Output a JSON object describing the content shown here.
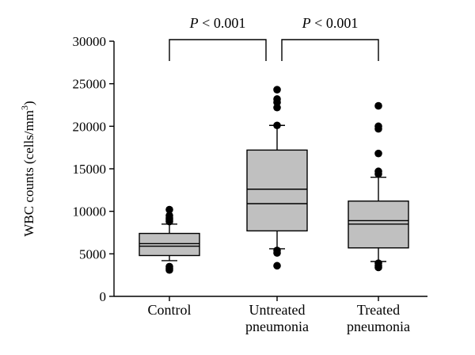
{
  "chart_data": {
    "type": "box",
    "ylabel_main": "WBC counts (cells/mm",
    "ylabel_sup": "3",
    "ylabel_close": ")",
    "ylim": [
      0,
      30000
    ],
    "yticks": [
      0,
      5000,
      10000,
      15000,
      20000,
      25000,
      30000
    ],
    "ytick_labels": [
      "0",
      "5000",
      "10000",
      "15000",
      "20000",
      "25000",
      "30000"
    ],
    "categories": [
      {
        "lines": [
          "Control"
        ]
      },
      {
        "lines": [
          "Untreated",
          "pneumonia"
        ]
      },
      {
        "lines": [
          "Treated",
          "pneumonia"
        ]
      }
    ],
    "boxes": [
      {
        "whisker_low": 4200,
        "q1": 4800,
        "median": 5900,
        "mean": 6200,
        "q3": 7400,
        "whisker_high": 8500,
        "outliers": [
          3100,
          3300,
          3500,
          8800,
          9000,
          9200,
          9500,
          10200
        ]
      },
      {
        "whisker_low": 5600,
        "q1": 7700,
        "median": 10900,
        "mean": 12600,
        "q3": 17200,
        "whisker_high": 20100,
        "outliers": [
          3600,
          5100,
          5400,
          20100,
          22200,
          22800,
          23200,
          24300
        ]
      },
      {
        "whisker_low": 4100,
        "q1": 5700,
        "median": 8500,
        "mean": 8900,
        "q3": 11200,
        "whisker_high": 14000,
        "outliers": [
          3400,
          3600,
          3900,
          14400,
          14700,
          16800,
          19700,
          20000,
          22400
        ]
      }
    ],
    "comparisons": [
      {
        "from": 0,
        "to": 1,
        "p_italic": "P",
        "p_rest": " < 0.001"
      },
      {
        "from": 1,
        "to": 2,
        "p_italic": "P",
        "p_rest": " < 0.001"
      }
    ],
    "colors": {
      "box_fill": "#c0c0c0",
      "stroke": "#000000",
      "outlier": "#000000"
    }
  }
}
